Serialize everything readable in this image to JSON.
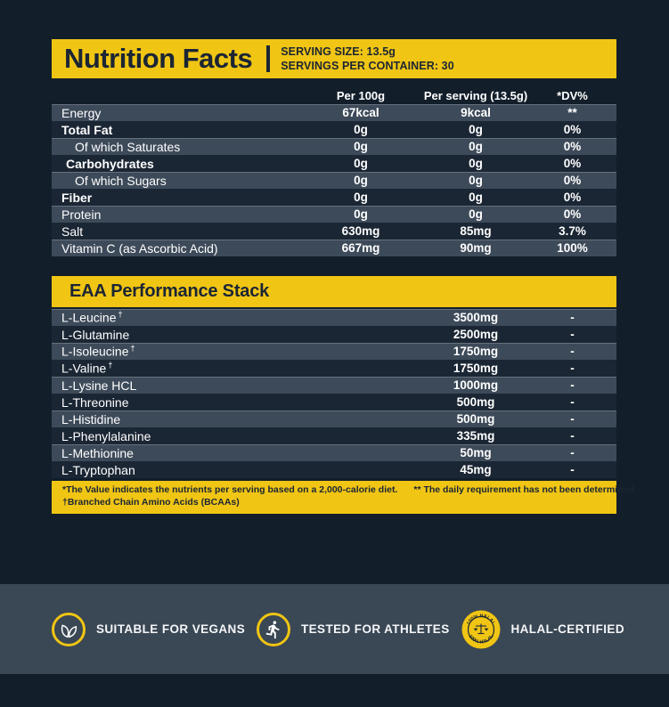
{
  "colors": {
    "accent_yellow": "#F0C514",
    "background_navy": "#121E2A",
    "row_shaded": "#3D4A59",
    "band_slate": "#3A4754",
    "text_dark": "#1B2534",
    "text_light": "#FFFFFF"
  },
  "header": {
    "title": "Nutrition Facts",
    "serving_size": "SERVING SIZE: 13.5g",
    "servings_per_container": "SERVINGS PER CONTAINER: 30"
  },
  "nutrition_table": {
    "columns": [
      "Per 100g",
      "Per serving (13.5g)",
      "*DV%"
    ],
    "rows": [
      {
        "label": "Energy",
        "indent": 0,
        "bold": false,
        "per_100g": "67kcal",
        "per_serving": "9kcal",
        "dv": "**",
        "shaded": true
      },
      {
        "label": "Total Fat",
        "indent": 0,
        "bold": true,
        "per_100g": "0g",
        "per_serving": "0g",
        "dv": "0%",
        "shaded": false
      },
      {
        "label": "Of which Saturates",
        "indent": 2,
        "bold": false,
        "per_100g": "0g",
        "per_serving": "0g",
        "dv": "0%",
        "shaded": true
      },
      {
        "label": "Carbohydrates",
        "indent": 1,
        "bold": true,
        "per_100g": "0g",
        "per_serving": "0g",
        "dv": "0%",
        "shaded": false
      },
      {
        "label": "Of which Sugars",
        "indent": 2,
        "bold": false,
        "per_100g": "0g",
        "per_serving": "0g",
        "dv": "0%",
        "shaded": true
      },
      {
        "label": "Fiber",
        "indent": 0,
        "bold": true,
        "per_100g": "0g",
        "per_serving": "0g",
        "dv": "0%",
        "shaded": false
      },
      {
        "label": "Protein",
        "indent": 0,
        "bold": false,
        "per_100g": "0g",
        "per_serving": "0g",
        "dv": "0%",
        "shaded": true
      },
      {
        "label": "Salt",
        "indent": 0,
        "bold": false,
        "per_100g": "630mg",
        "per_serving": "85mg",
        "dv": "3.7%",
        "shaded": false
      },
      {
        "label": "Vitamin C (as Ascorbic Acid)",
        "indent": 0,
        "bold": false,
        "per_100g": "667mg",
        "per_serving": "90mg",
        "dv": "100%",
        "shaded": true
      }
    ]
  },
  "eaa_section": {
    "title": "EAA Performance Stack",
    "rows": [
      {
        "label": "L-Leucine",
        "dagger": true,
        "amount": "3500mg",
        "dv": "-",
        "shaded": true
      },
      {
        "label": "L-Glutamine",
        "dagger": false,
        "amount": "2500mg",
        "dv": "-",
        "shaded": false
      },
      {
        "label": "L-Isoleucine",
        "dagger": true,
        "amount": "1750mg",
        "dv": "-",
        "shaded": true
      },
      {
        "label": "L-Valine",
        "dagger": true,
        "amount": "1750mg",
        "dv": "-",
        "shaded": false
      },
      {
        "label": "L-Lysine HCL",
        "dagger": false,
        "amount": "1000mg",
        "dv": "-",
        "shaded": true
      },
      {
        "label": "L-Threonine",
        "dagger": false,
        "amount": "500mg",
        "dv": "-",
        "shaded": false
      },
      {
        "label": "L-Histidine",
        "dagger": false,
        "amount": "500mg",
        "dv": "-",
        "shaded": true
      },
      {
        "label": "L-Phenylalanine",
        "dagger": false,
        "amount": "335mg",
        "dv": "-",
        "shaded": false
      },
      {
        "label": "L-Methionine",
        "dagger": false,
        "amount": "50mg",
        "dv": "-",
        "shaded": true
      },
      {
        "label": "L-Tryptophan",
        "dagger": false,
        "amount": "45mg",
        "dv": "-",
        "shaded": false
      }
    ]
  },
  "footnotes": {
    "note1": "*The Value indicates the nutrients per serving based on a 2,000-calorie diet.",
    "note2": "** The daily requirement has not been determined.",
    "note3": "†Branched Chain Amino Acids (BCAAs)"
  },
  "badges": [
    {
      "icon": "leaf-icon",
      "label": "SUITABLE FOR VEGANS"
    },
    {
      "icon": "runner-icon",
      "label": "TESTED FOR ATHLETES"
    },
    {
      "icon": "halal-stamp-icon",
      "label": "HALAL-CERTIFIED",
      "stamp_text": "100% HALAL"
    }
  ]
}
